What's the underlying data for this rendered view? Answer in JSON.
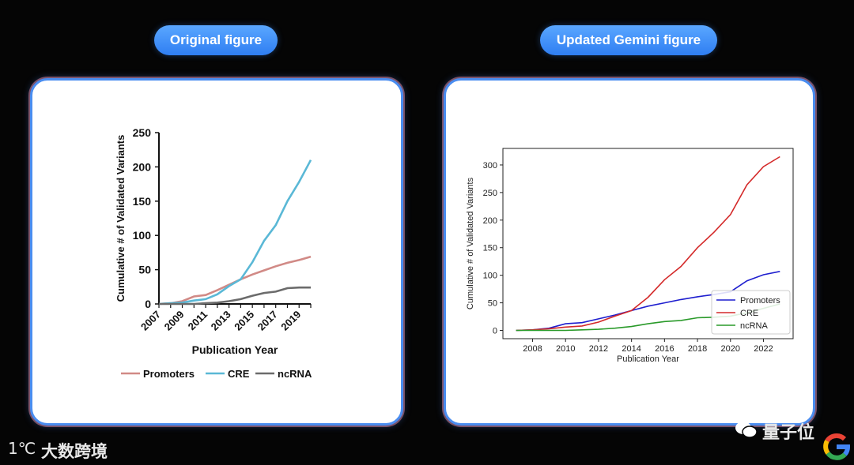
{
  "labels": {
    "original": "Original figure",
    "updated": "Updated Gemini figure"
  },
  "watermark": {
    "left_logo": "1℃",
    "left_text": "大数跨境",
    "right_text": "量子位"
  },
  "chart_data": [
    {
      "type": "line",
      "title": "",
      "xlabel": "Publication Year",
      "ylabel": "Cumulative # of Validated Variants",
      "xlim": [
        2007,
        2020
      ],
      "ylim": [
        0,
        250
      ],
      "xticks": [
        2007,
        2009,
        2011,
        2013,
        2015,
        2017,
        2019
      ],
      "yticks": [
        0,
        50,
        100,
        150,
        200,
        250
      ],
      "legend": "bottom",
      "x": [
        2007,
        2008,
        2009,
        2010,
        2011,
        2012,
        2013,
        2014,
        2015,
        2016,
        2017,
        2018,
        2019,
        2020
      ],
      "series": [
        {
          "name": "Promoters",
          "color": "#d18a86",
          "values": [
            0,
            1,
            4,
            11,
            13,
            20,
            28,
            36,
            43,
            49,
            55,
            60,
            64,
            69
          ]
        },
        {
          "name": "CRE",
          "color": "#5ab8d6",
          "values": [
            0,
            1,
            2,
            5,
            7,
            14,
            26,
            36,
            61,
            92,
            115,
            150,
            178,
            210
          ]
        },
        {
          "name": "ncRNA",
          "color": "#6b6b6b",
          "values": [
            0,
            0,
            0,
            0,
            1,
            2,
            4,
            7,
            12,
            16,
            18,
            23,
            24,
            24
          ]
        }
      ]
    },
    {
      "type": "line",
      "title": "",
      "xlabel": "Publication Year",
      "ylabel": "Cumulative # of Validated Variants",
      "xlim": [
        2006.2,
        2023.8
      ],
      "ylim": [
        -15,
        330
      ],
      "xticks": [
        2008,
        2010,
        2012,
        2014,
        2016,
        2018,
        2020,
        2022
      ],
      "yticks": [
        0,
        50,
        100,
        150,
        200,
        250,
        300
      ],
      "legend": "lower-right",
      "x": [
        2007,
        2008,
        2009,
        2010,
        2011,
        2012,
        2013,
        2014,
        2015,
        2016,
        2017,
        2018,
        2019,
        2020,
        2021,
        2022,
        2023
      ],
      "series": [
        {
          "name": "Promoters",
          "color": "#1f1fcf",
          "values": [
            0,
            1,
            4,
            12,
            14,
            21,
            28,
            36,
            44,
            50,
            56,
            61,
            65,
            70,
            90,
            101,
            107
          ]
        },
        {
          "name": "CRE",
          "color": "#d42a2a",
          "values": [
            0,
            1,
            3,
            6,
            8,
            15,
            26,
            36,
            60,
            92,
            116,
            150,
            178,
            210,
            264,
            297,
            315
          ]
        },
        {
          "name": "ncRNA",
          "color": "#2a9a2a",
          "values": [
            0,
            0,
            0,
            0,
            1,
            2,
            4,
            7,
            12,
            16,
            18,
            23,
            24,
            26,
            32,
            40,
            48
          ]
        }
      ]
    }
  ]
}
